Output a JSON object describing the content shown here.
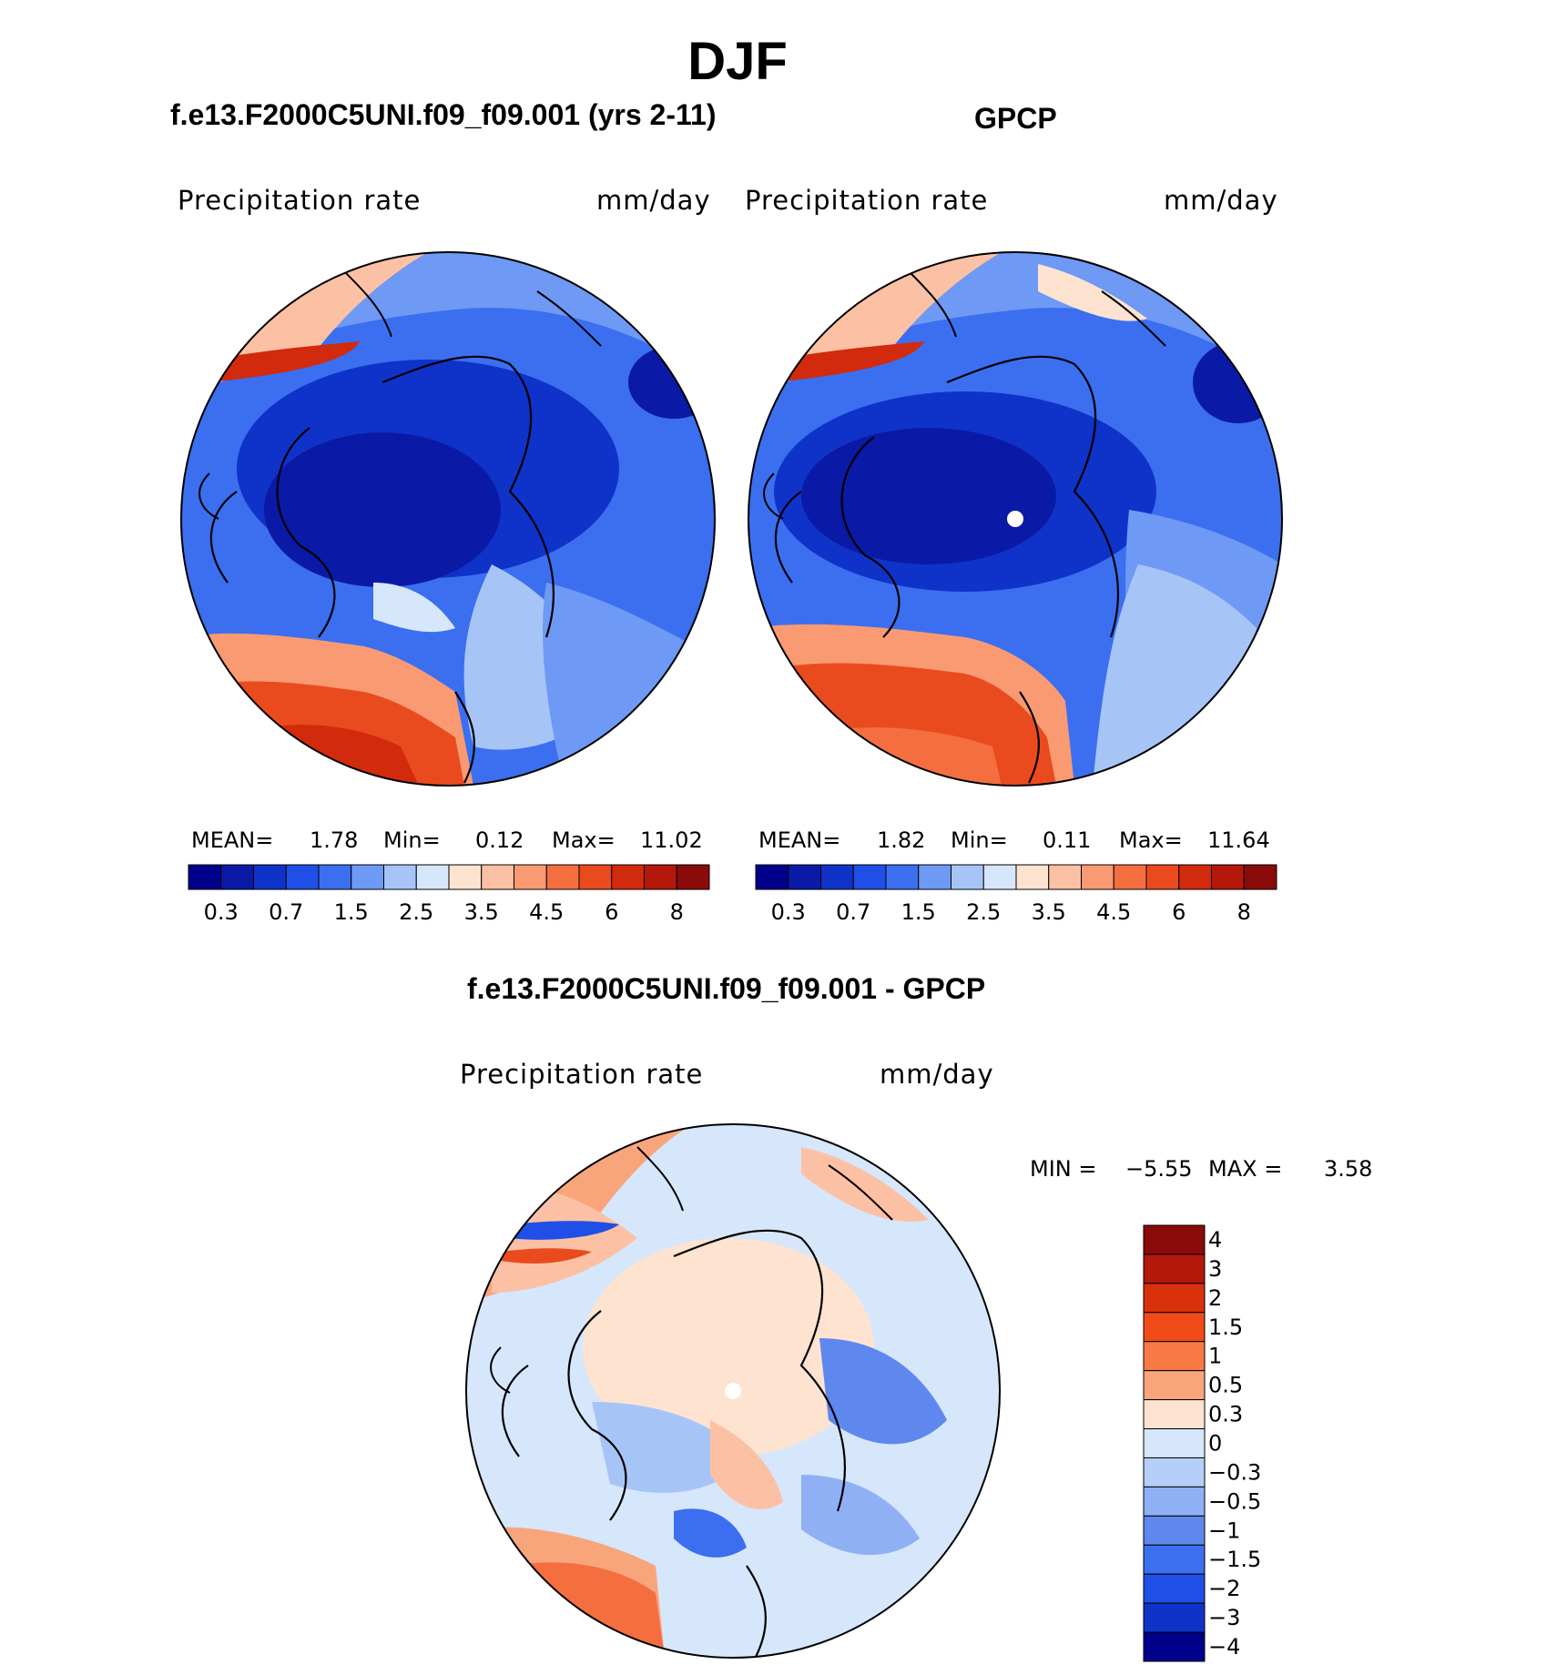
{
  "season": "DJF",
  "panels": [
    {
      "id": "model",
      "title": "f.e13.F2000C5UNI.f09_f09.001 (yrs 2-11)",
      "left_label": "Precipitation  rate",
      "right_label": "mm/day",
      "mean_label": "MEAN=",
      "mean": "1.78",
      "min_label": "Min=",
      "min": "0.12",
      "max_label": "Max=",
      "max": "11.02",
      "missing_pole": false
    },
    {
      "id": "obs",
      "title": "GPCP",
      "left_label": "Precipitation  rate",
      "right_label": "mm/day",
      "mean_label": "MEAN=",
      "mean": "1.82",
      "min_label": "Min=",
      "min": "0.11",
      "max_label": "Max=",
      "max": "11.64",
      "missing_pole": true
    }
  ],
  "field_colorbar": {
    "colors": [
      "#00008b",
      "#0a1aa6",
      "#0f33c9",
      "#1f4fe6",
      "#3b6ff0",
      "#6e99f4",
      "#a7c4f7",
      "#d6e7fb",
      "#fde3d0",
      "#fcc1a4",
      "#f99a73",
      "#f46e40",
      "#ea4b1e",
      "#d22a0c",
      "#b3180b",
      "#8b0a0a"
    ],
    "tick_labels": [
      "0.3",
      "0.7",
      "1.5",
      "2.5",
      "3.5",
      "4.5",
      "6",
      "8"
    ]
  },
  "difference": {
    "title": "f.e13.F2000C5UNI.f09_f09.001 - GPCP",
    "left_label": "Precipitation  rate",
    "right_label": "mm/day",
    "min_label": "MIN =",
    "min": "−5.55",
    "max_label": "MAX =",
    "max": "3.58",
    "missing_pole": true,
    "colorbar": {
      "colors": [
        "#8b0a0a",
        "#b3180b",
        "#d9310c",
        "#f24b1a",
        "#f77a46",
        "#f9a57c",
        "#fde3d0",
        "#d6e7fb",
        "#b6cff8",
        "#8fb0f4",
        "#5f88ee",
        "#3b6ff0",
        "#1f4fe6",
        "#0f33c9",
        "#00008b"
      ],
      "tick_labels": [
        "4",
        "3",
        "2",
        "1.5",
        "1",
        "0.5",
        "0.3",
        "0",
        "−0.3",
        "−0.5",
        "−1",
        "−1.5",
        "−2",
        "−3",
        "−4"
      ]
    }
  }
}
